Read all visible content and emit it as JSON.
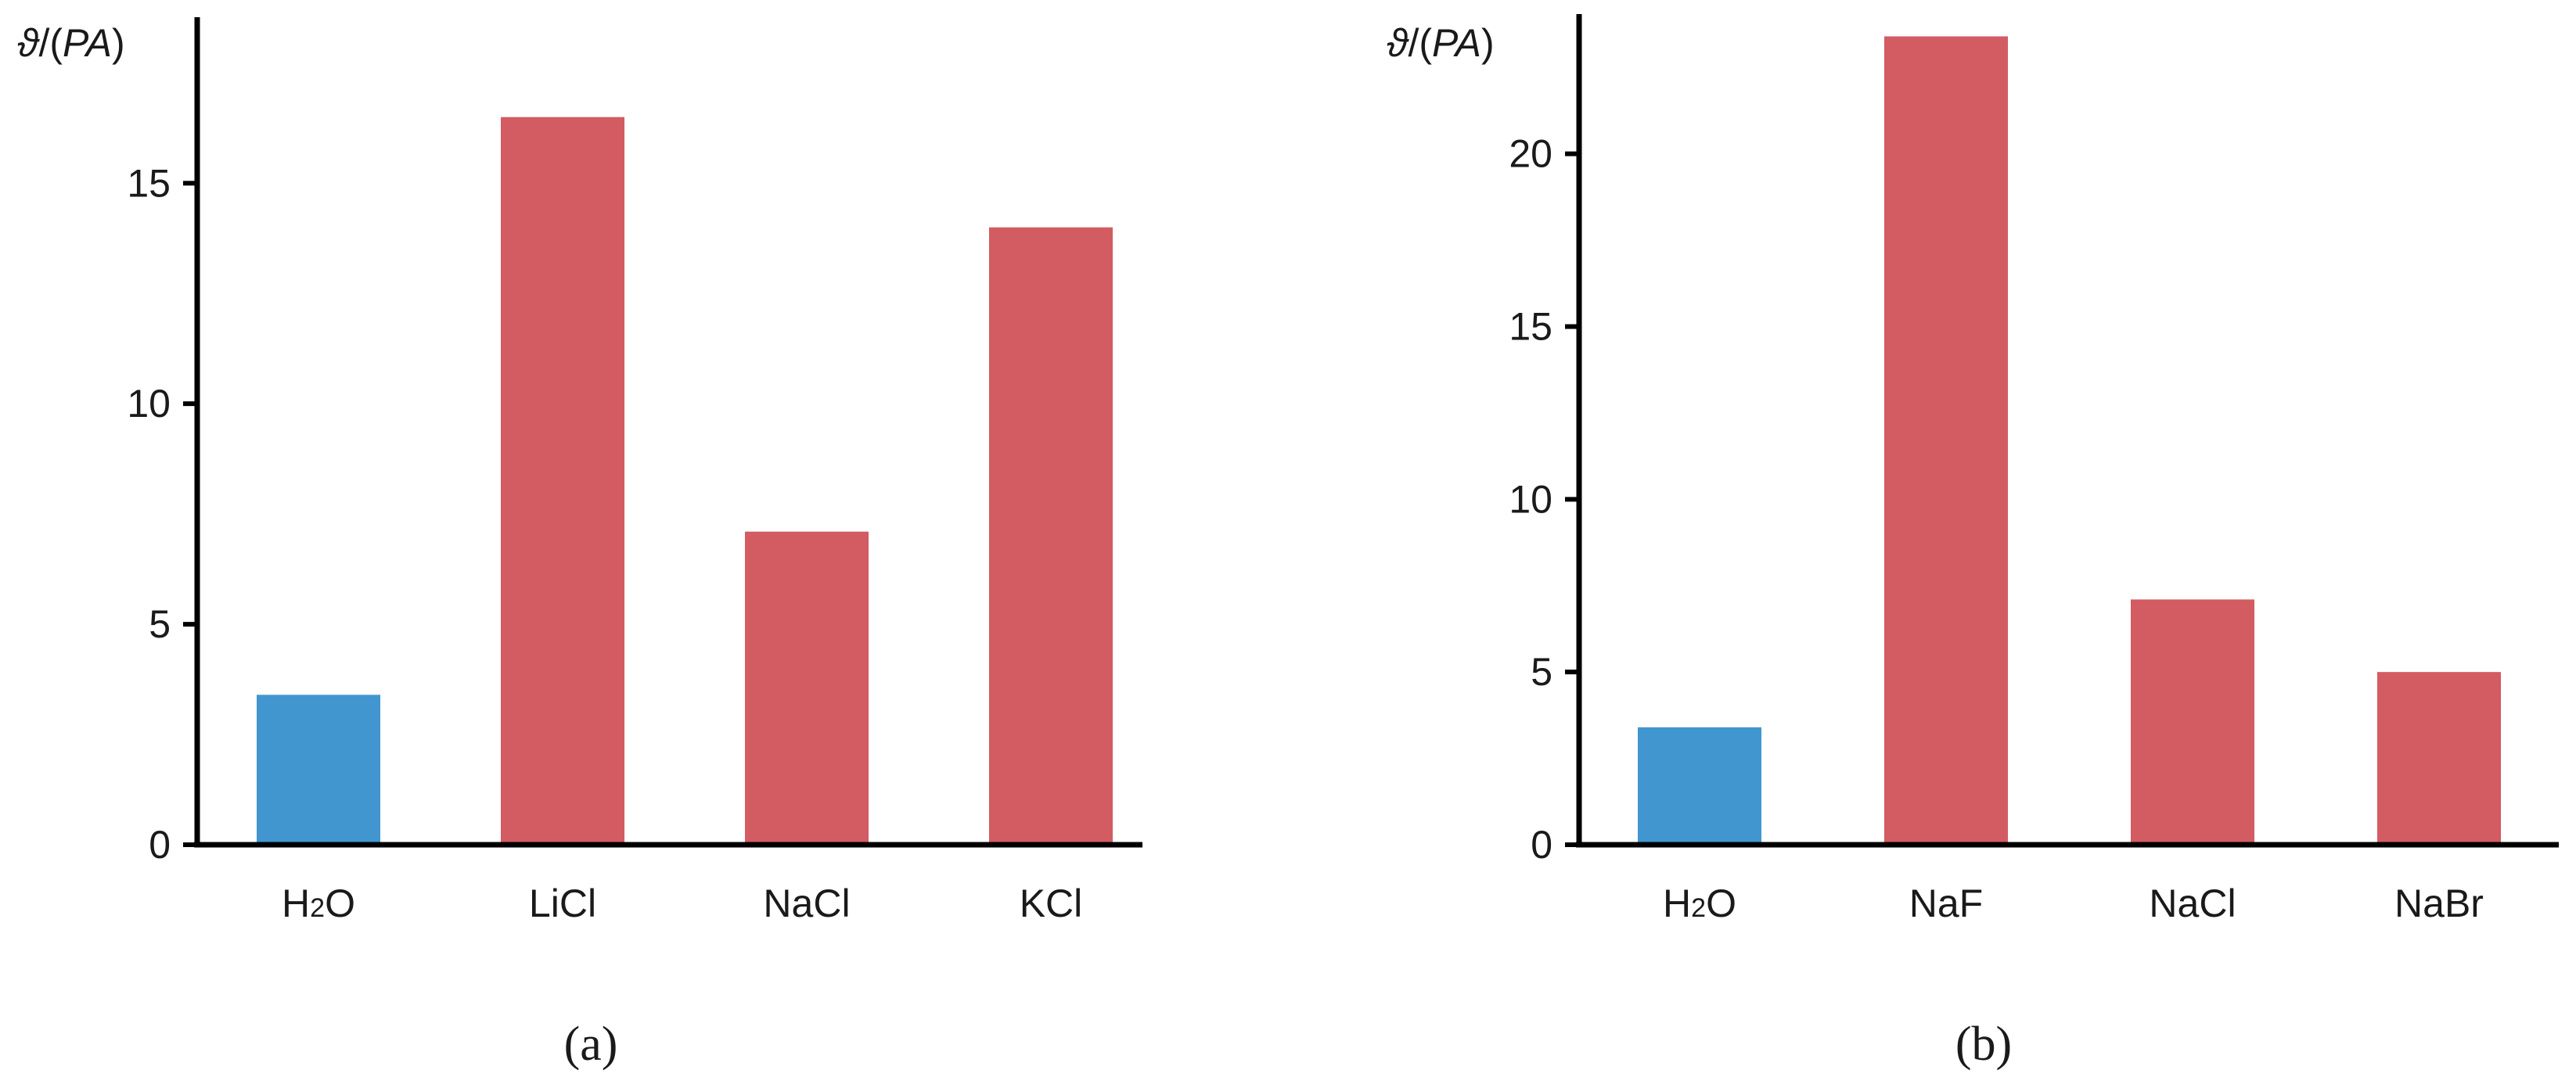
{
  "chart_data": [
    {
      "type": "bar",
      "panel_label": "(a)",
      "ylabel": "ϑ/(PA)",
      "ylim": [
        0,
        18.8
      ],
      "yticks": [
        "0",
        "5",
        "10",
        "15"
      ],
      "ytick_values": [
        0,
        5,
        10,
        15
      ],
      "categories": [
        "H2O",
        "LiCl",
        "NaCl",
        "KCl"
      ],
      "values": [
        3.4,
        16.5,
        7.1,
        14.0
      ],
      "colors": [
        "#4196cf",
        "#d35b62",
        "#d35b62",
        "#d35b62"
      ]
    },
    {
      "type": "bar",
      "panel_label": "(b)",
      "ylabel": "ϑ/(PA)",
      "ylim": [
        0,
        24.0
      ],
      "yticks": [
        "0",
        "5",
        "10",
        "15",
        "20"
      ],
      "ytick_values": [
        0,
        5,
        10,
        15,
        20
      ],
      "categories": [
        "H2O",
        "NaF",
        "NaCl",
        "NaBr"
      ],
      "values": [
        3.4,
        23.4,
        7.1,
        5.0
      ],
      "colors": [
        "#4196cf",
        "#d35b62",
        "#d35b62",
        "#d35b62"
      ]
    }
  ]
}
